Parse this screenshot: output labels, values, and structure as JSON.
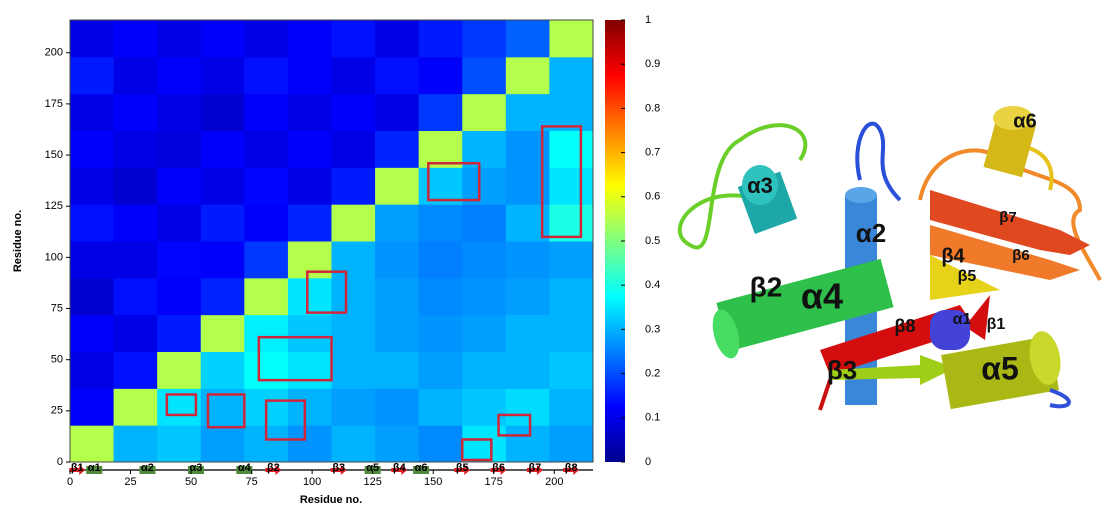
{
  "chart_data": {
    "type": "heatmap",
    "xlabel": "Residue no.",
    "ylabel": "Residue no.",
    "bins": [
      0,
      18,
      36,
      54,
      72,
      90,
      108,
      126,
      144,
      162,
      180,
      198,
      216
    ],
    "matrix": [
      [
        0.55,
        0.3,
        0.32,
        0.28,
        0.3,
        0.27,
        0.3,
        0.28,
        0.26,
        0.35,
        0.3,
        0.28
      ],
      [
        0.12,
        0.55,
        0.35,
        0.3,
        0.33,
        0.3,
        0.28,
        0.27,
        0.3,
        0.32,
        0.34,
        0.3
      ],
      [
        0.1,
        0.14,
        0.55,
        0.33,
        0.38,
        0.35,
        0.3,
        0.3,
        0.28,
        0.3,
        0.3,
        0.32
      ],
      [
        0.12,
        0.1,
        0.15,
        0.55,
        0.36,
        0.32,
        0.3,
        0.28,
        0.27,
        0.28,
        0.3,
        0.3
      ],
      [
        0.08,
        0.14,
        0.12,
        0.16,
        0.55,
        0.35,
        0.3,
        0.28,
        0.26,
        0.27,
        0.28,
        0.3
      ],
      [
        0.1,
        0.1,
        0.13,
        0.12,
        0.18,
        0.55,
        0.3,
        0.27,
        0.25,
        0.26,
        0.27,
        0.28
      ],
      [
        0.14,
        0.12,
        0.1,
        0.15,
        0.12,
        0.16,
        0.55,
        0.28,
        0.26,
        0.25,
        0.3,
        0.4
      ],
      [
        0.1,
        0.08,
        0.12,
        0.1,
        0.13,
        0.1,
        0.15,
        0.55,
        0.32,
        0.28,
        0.27,
        0.35
      ],
      [
        0.12,
        0.1,
        0.09,
        0.12,
        0.1,
        0.12,
        0.1,
        0.16,
        0.55,
        0.3,
        0.27,
        0.38
      ],
      [
        0.1,
        0.12,
        0.1,
        0.08,
        0.12,
        0.1,
        0.12,
        0.1,
        0.18,
        0.55,
        0.3,
        0.3
      ],
      [
        0.15,
        0.1,
        0.12,
        0.1,
        0.14,
        0.12,
        0.1,
        0.14,
        0.12,
        0.2,
        0.55,
        0.3
      ],
      [
        0.1,
        0.12,
        0.1,
        0.12,
        0.1,
        0.12,
        0.14,
        0.1,
        0.15,
        0.18,
        0.22,
        0.55
      ]
    ],
    "xlim": [
      0,
      216
    ],
    "ylim": [
      0,
      216
    ],
    "xticks": [
      0,
      25,
      50,
      75,
      100,
      125,
      150,
      175,
      200
    ],
    "yticks": [
      0,
      25,
      50,
      75,
      100,
      125,
      150,
      175,
      200
    ],
    "clim": [
      0,
      1
    ],
    "cticks": [
      0,
      0.1,
      0.2,
      0.3,
      0.4,
      0.5,
      0.6,
      0.7,
      0.8,
      0.9,
      1
    ],
    "box_color": "#d0263a",
    "highlight_boxes": [
      {
        "x": [
          40,
          52
        ],
        "y": [
          23,
          33
        ]
      },
      {
        "x": [
          57,
          72
        ],
        "y": [
          17,
          33
        ]
      },
      {
        "x": [
          81,
          97
        ],
        "y": [
          11,
          30
        ]
      },
      {
        "x": [
          78,
          108
        ],
        "y": [
          40,
          61
        ]
      },
      {
        "x": [
          98,
          114
        ],
        "y": [
          73,
          93
        ]
      },
      {
        "x": [
          162,
          174
        ],
        "y": [
          1,
          11
        ]
      },
      {
        "x": [
          177,
          190
        ],
        "y": [
          13,
          23
        ]
      },
      {
        "x": [
          148,
          169
        ],
        "y": [
          128,
          146
        ]
      },
      {
        "x": [
          195,
          211
        ],
        "y": [
          110,
          164
        ]
      }
    ],
    "secondary_structure": [
      {
        "label": "β1",
        "residue": 3,
        "kind": "strand"
      },
      {
        "label": "α1",
        "residue": 10,
        "kind": "helix"
      },
      {
        "label": "α2",
        "residue": 32,
        "kind": "helix"
      },
      {
        "label": "α3",
        "residue": 52,
        "kind": "helix"
      },
      {
        "label": "α4",
        "residue": 72,
        "kind": "helix"
      },
      {
        "label": "β2",
        "residue": 84,
        "kind": "strand"
      },
      {
        "label": "β3",
        "residue": 111,
        "kind": "strand"
      },
      {
        "label": "α5",
        "residue": 125,
        "kind": "helix"
      },
      {
        "label": "β4",
        "residue": 136,
        "kind": "strand"
      },
      {
        "label": "α6",
        "residue": 145,
        "kind": "helix"
      },
      {
        "label": "β5",
        "residue": 162,
        "kind": "strand"
      },
      {
        "label": "β6",
        "residue": 177,
        "kind": "strand"
      },
      {
        "label": "β7",
        "residue": 192,
        "kind": "strand"
      },
      {
        "label": "β8",
        "residue": 207,
        "kind": "strand"
      }
    ]
  },
  "structure_labels": [
    "α6",
    "α3",
    "α2",
    "β7",
    "β4",
    "β6",
    "β5",
    "β2",
    "α4",
    "β8",
    "α1",
    "β1",
    "β3",
    "α5"
  ]
}
